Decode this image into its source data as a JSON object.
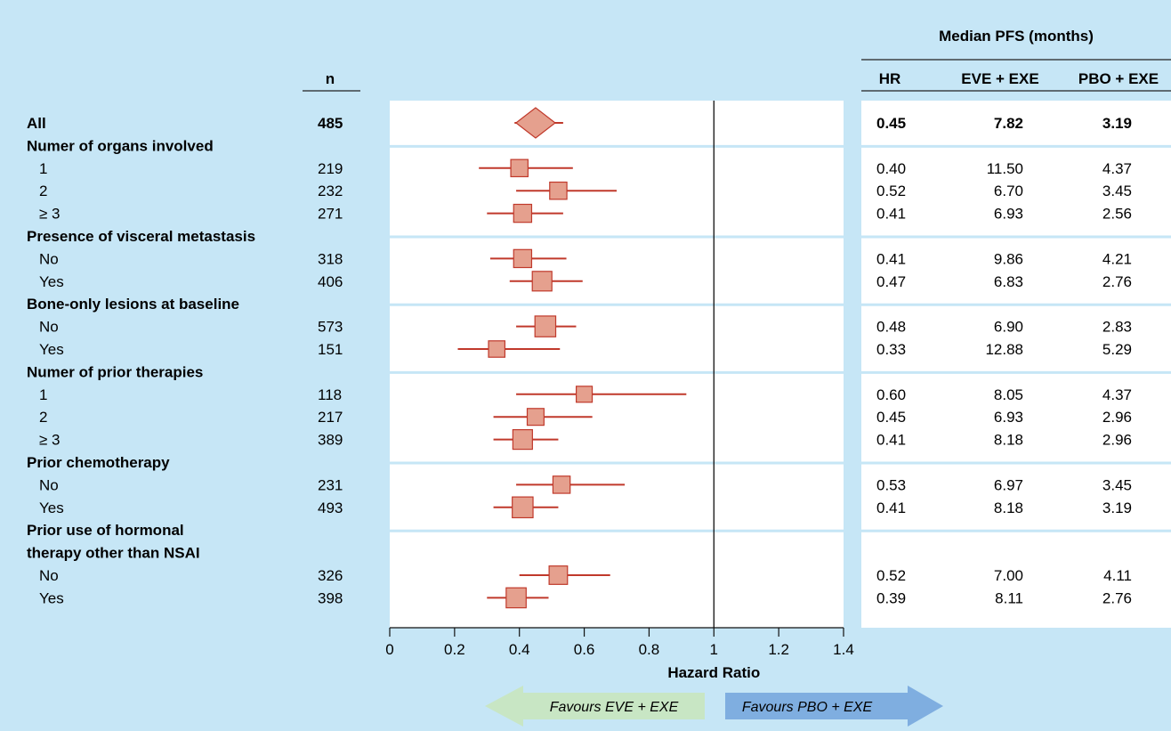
{
  "chart_data": {
    "type": "forest",
    "xlabel": "Hazard Ratio",
    "xlim": [
      0,
      1.4
    ],
    "xticks": [
      0,
      0.2,
      0.4,
      0.6,
      0.8,
      1,
      1.2,
      1.4
    ],
    "reference_line": 1,
    "grid": false,
    "columns": {
      "n": "n",
      "hr": "HR",
      "median_group": "Median PFS (months)",
      "eve": "EVE + EXE",
      "pbo": "PBO + EXE"
    },
    "rows": [
      {
        "kind": "overall",
        "label": "All",
        "n": "485",
        "hr": 0.45,
        "lo": 0.385,
        "hi": 0.535,
        "eve": "7.82",
        "pbo": "3.19",
        "hr_text": "0.45"
      },
      {
        "kind": "header",
        "label": "Numer of organs involved"
      },
      {
        "kind": "item",
        "label": "1",
        "n": "219",
        "hr": 0.4,
        "lo": 0.275,
        "hi": 0.565,
        "eve": "11.50",
        "pbo": "4.37",
        "hr_text": "0.40",
        "size": 0.7
      },
      {
        "kind": "item",
        "label": "2",
        "n": "232",
        "hr": 0.52,
        "lo": 0.39,
        "hi": 0.7,
        "eve": "6.70",
        "pbo": "3.45",
        "hr_text": "0.52",
        "size": 0.7
      },
      {
        "kind": "item",
        "label": "≥ 3",
        "n": "271",
        "hr": 0.41,
        "lo": 0.3,
        "hi": 0.535,
        "eve": "6.93",
        "pbo": "2.56",
        "hr_text": "0.41",
        "size": 0.8
      },
      {
        "kind": "header",
        "label": "Presence of visceral metastasis"
      },
      {
        "kind": "item",
        "label": "No",
        "n": "318",
        "hr": 0.41,
        "lo": 0.31,
        "hi": 0.545,
        "eve": "9.86",
        "pbo": "4.21",
        "hr_text": "0.41",
        "size": 0.8
      },
      {
        "kind": "item",
        "label": "Yes",
        "n": "406",
        "hr": 0.47,
        "lo": 0.37,
        "hi": 0.595,
        "eve": "6.83",
        "pbo": "2.76",
        "hr_text": "0.47",
        "size": 1.0
      },
      {
        "kind": "header",
        "label": "Bone-only lesions at baseline"
      },
      {
        "kind": "item",
        "label": "No",
        "n": "573",
        "hr": 0.48,
        "lo": 0.39,
        "hi": 0.575,
        "eve": "6.90",
        "pbo": "2.83",
        "hr_text": "0.48",
        "size": 1.15
      },
      {
        "kind": "item",
        "label": "Yes",
        "n": "151",
        "hr": 0.33,
        "lo": 0.21,
        "hi": 0.525,
        "eve": "12.88",
        "pbo": "5.29",
        "hr_text": "0.33",
        "size": 0.6
      },
      {
        "kind": "header",
        "label": "Numer of prior therapies"
      },
      {
        "kind": "item",
        "label": "1",
        "n": "118",
        "hr": 0.6,
        "lo": 0.39,
        "hi": 0.915,
        "eve": "8.05",
        "pbo": "4.37",
        "hr_text": "0.60",
        "size": 0.55
      },
      {
        "kind": "item",
        "label": "2",
        "n": "217",
        "hr": 0.45,
        "lo": 0.32,
        "hi": 0.625,
        "eve": "6.93",
        "pbo": "2.96",
        "hr_text": "0.45",
        "size": 0.65
      },
      {
        "kind": "item",
        "label": "≥ 3",
        "n": "389",
        "hr": 0.41,
        "lo": 0.32,
        "hi": 0.52,
        "eve": "8.18",
        "pbo": "2.96",
        "hr_text": "0.41",
        "size": 1.0
      },
      {
        "kind": "header",
        "label": "Prior chemotherapy"
      },
      {
        "kind": "item",
        "label": "No",
        "n": "231",
        "hr": 0.53,
        "lo": 0.39,
        "hi": 0.725,
        "eve": "6.97",
        "pbo": "3.45",
        "hr_text": "0.53",
        "size": 0.7
      },
      {
        "kind": "item",
        "label": "Yes",
        "n": "493",
        "hr": 0.41,
        "lo": 0.32,
        "hi": 0.52,
        "eve": "8.18",
        "pbo": "3.19",
        "hr_text": "0.41",
        "size": 1.15
      },
      {
        "kind": "header",
        "label": "Prior use of hormonal"
      },
      {
        "kind": "header2",
        "label": "therapy other than NSAI"
      },
      {
        "kind": "item",
        "label": "No",
        "n": "326",
        "hr": 0.52,
        "lo": 0.4,
        "hi": 0.68,
        "eve": "7.00",
        "pbo": "4.11",
        "hr_text": "0.52",
        "size": 0.85
      },
      {
        "kind": "item",
        "label": "Yes",
        "n": "398",
        "hr": 0.39,
        "lo": 0.3,
        "hi": 0.49,
        "eve": "8.11",
        "pbo": "2.76",
        "hr_text": "0.39",
        "size": 1.05
      }
    ],
    "favours_left": "Favours EVE + EXE",
    "favours_right": "Favours PBO + EXE",
    "colors": {
      "background": "#c6e6f6",
      "plot_area": "#ffffff",
      "marker_fill": "#e5a08e",
      "marker_edge": "#c0392b",
      "ci_line": "#c0392b",
      "arrow_left": "#c8e6c4",
      "arrow_right": "#7faee0"
    }
  }
}
